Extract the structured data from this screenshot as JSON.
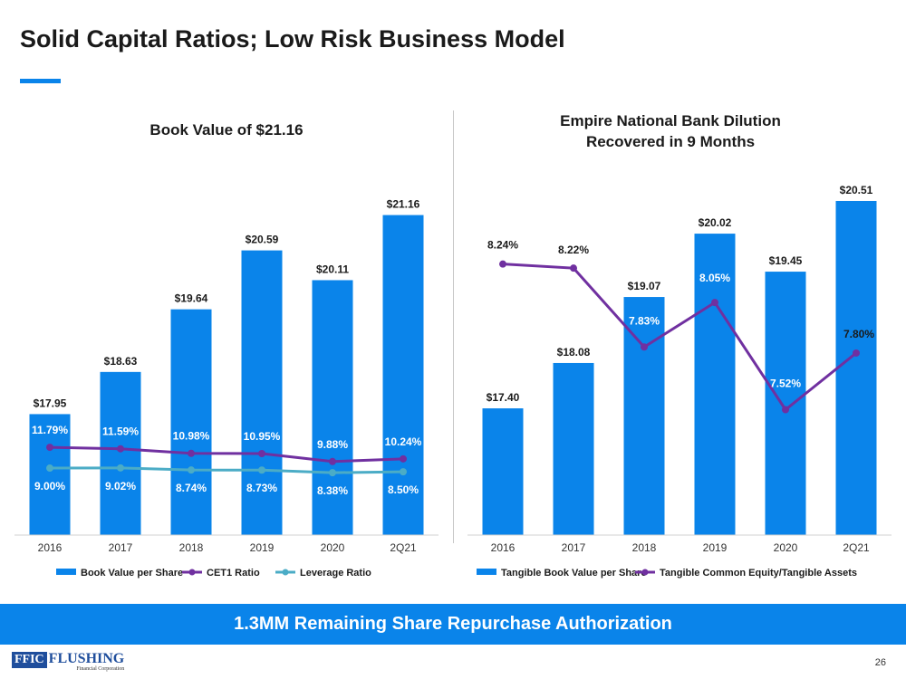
{
  "title": "Solid Capital Ratios; Low Risk Business Model",
  "banner": "1.3MM Remaining Share Repurchase Authorization",
  "page_number": "26",
  "logo": {
    "box": "FFIC",
    "name": "FLUSHING",
    "sub": "Financial Corporation"
  },
  "colors": {
    "bar": "#0a84ea",
    "purple": "#7030a0",
    "teal": "#4bacc6",
    "banner": "#0a84ea"
  },
  "chart_data": [
    {
      "type": "bar+line",
      "title": "Book Value of $21.16",
      "categories": [
        "2016",
        "2017",
        "2018",
        "2019",
        "2020",
        "2Q21"
      ],
      "bar_series": {
        "name": "Book Value per Share",
        "values": [
          17.95,
          18.63,
          19.64,
          20.59,
          20.11,
          21.16
        ],
        "labels": [
          "$17.95",
          "$18.63",
          "$19.64",
          "$20.59",
          "$20.11",
          "$21.16"
        ]
      },
      "line_series": [
        {
          "name": "CET1 Ratio",
          "values": [
            11.79,
            11.59,
            10.98,
            10.95,
            9.88,
            10.24
          ],
          "labels": [
            "11.79%",
            "11.59%",
            "10.98%",
            "10.95%",
            "9.88%",
            "10.24%"
          ]
        },
        {
          "name": "Leverage Ratio",
          "values": [
            9.0,
            9.02,
            8.74,
            8.73,
            8.38,
            8.5
          ],
          "labels": [
            "9.00%",
            "9.02%",
            "8.74%",
            "8.73%",
            "8.38%",
            "8.50%"
          ]
        }
      ],
      "ylim": [
        16,
        22
      ],
      "y2lim": [
        0,
        50
      ],
      "grid": false,
      "legend": "bottom"
    },
    {
      "type": "bar+line",
      "title": "Empire National Bank Dilution Recovered in 9 Months",
      "title_lines": [
        "Empire National Bank Dilution",
        "Recovered in 9 Months"
      ],
      "categories": [
        "2016",
        "2017",
        "2018",
        "2019",
        "2020",
        "2Q21"
      ],
      "bar_series": {
        "name": "Tangible Book Value per Share",
        "values": [
          17.4,
          18.08,
          19.07,
          20.02,
          19.45,
          20.51
        ],
        "labels": [
          "$17.40",
          "$18.08",
          "$19.07",
          "$20.02",
          "$19.45",
          "$20.51"
        ]
      },
      "line_series": [
        {
          "name": "Tangible Common Equity/Tangible Assets",
          "values": [
            8.24,
            8.22,
            7.83,
            8.05,
            7.52,
            7.8
          ],
          "labels": [
            "8.24%",
            "8.22%",
            "7.83%",
            "8.05%",
            "7.52%",
            "7.80%"
          ]
        }
      ],
      "ylim": [
        15.5,
        21.08
      ],
      "y2lim": [
        6.9,
        8.74
      ],
      "grid": false,
      "legend": "bottom"
    }
  ]
}
